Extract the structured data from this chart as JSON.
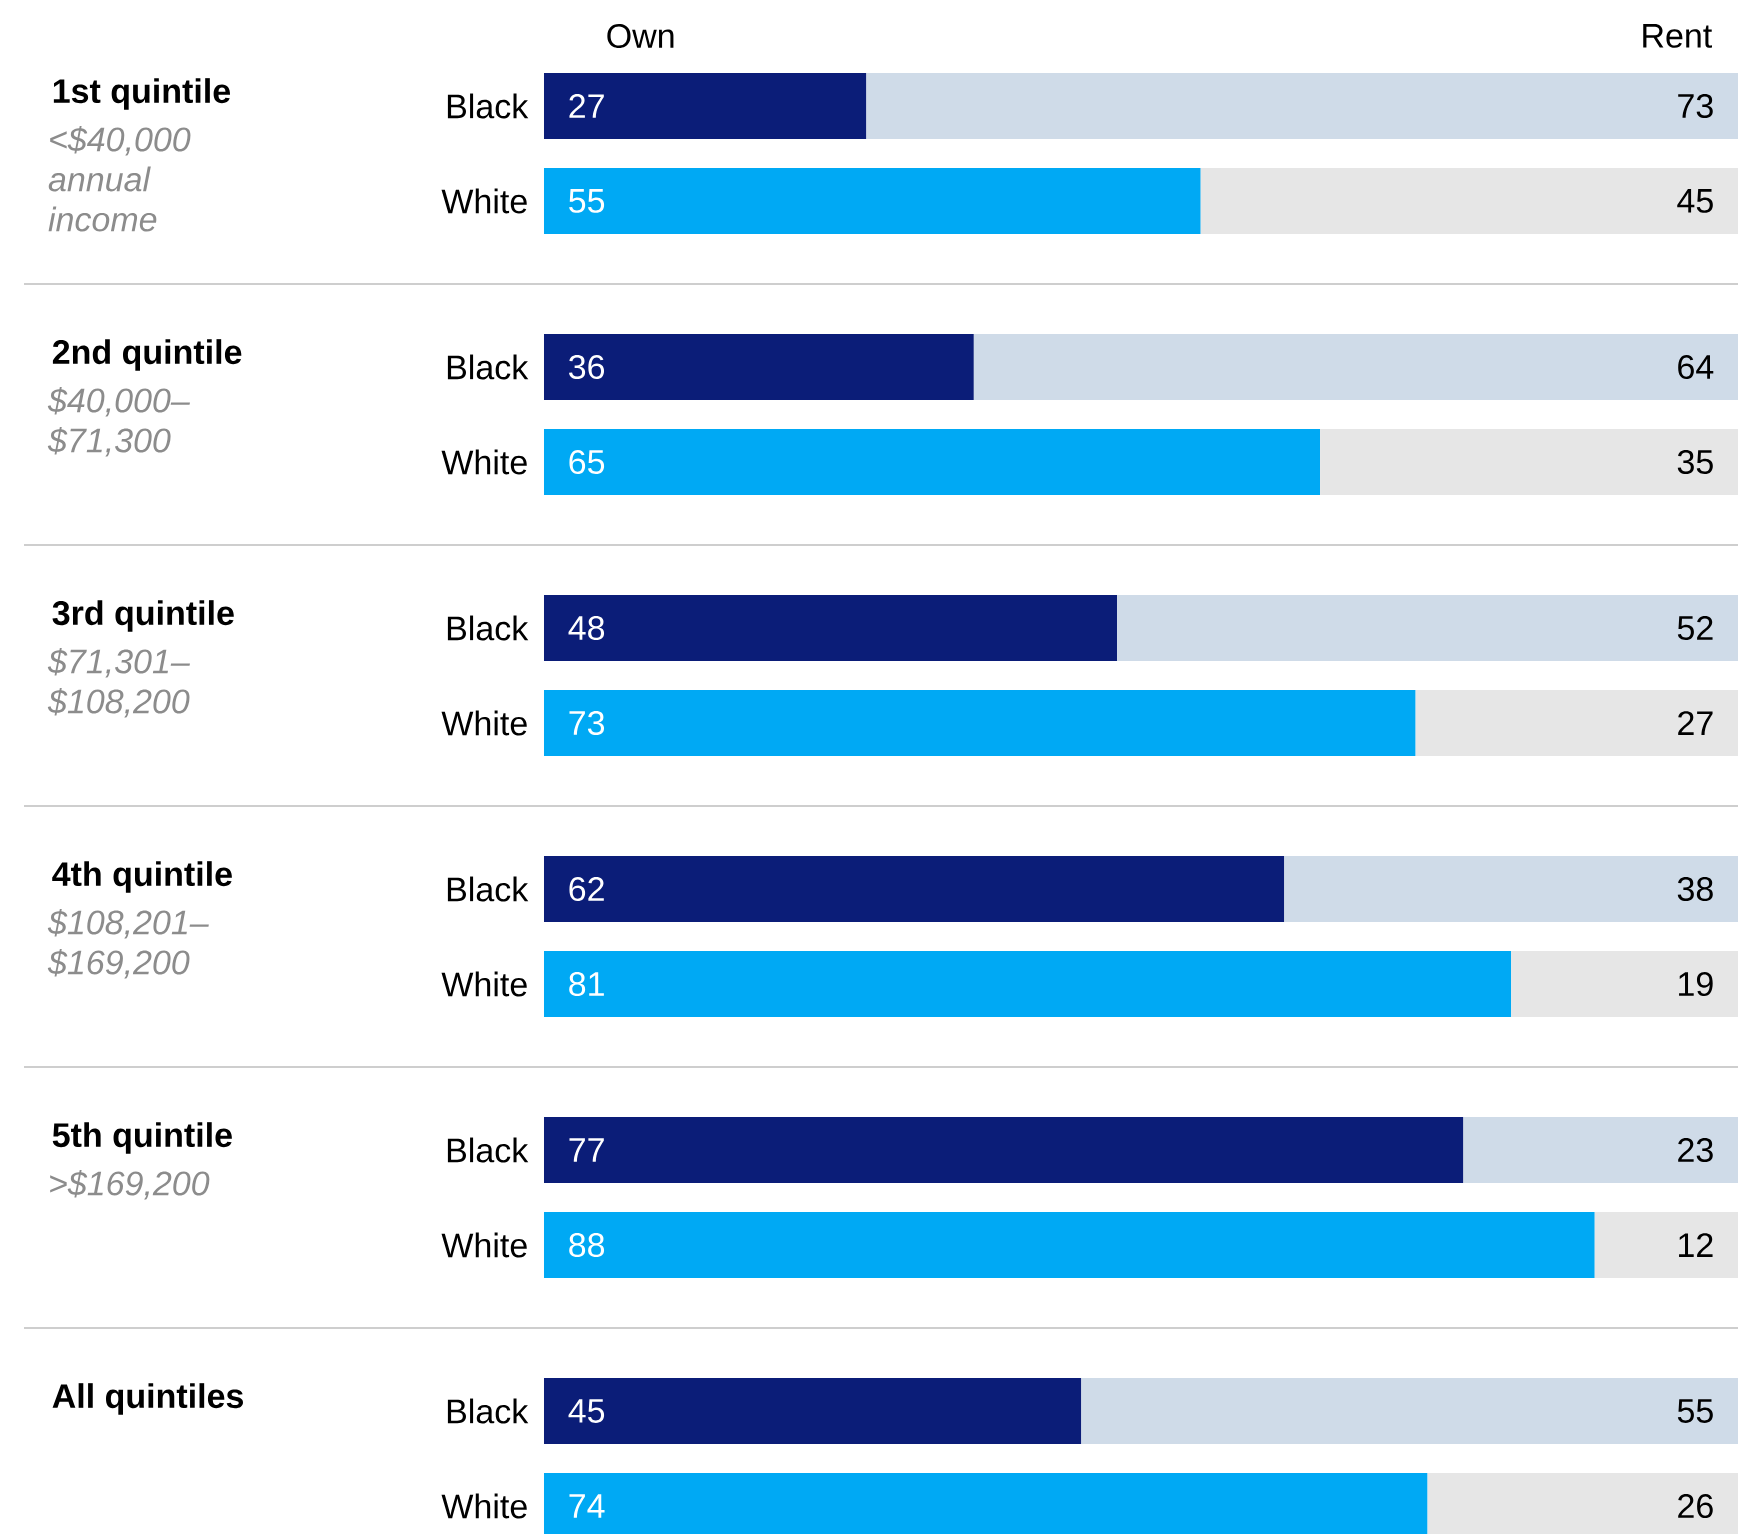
{
  "chart_data": {
    "type": "bar",
    "orientation": "horizontal",
    "stacked": true,
    "data_labels": true,
    "tick_labels": "y",
    "xlim": [
      0,
      100
    ],
    "categories": [
      "Black",
      "White",
      "Black",
      "White",
      "Black",
      "White",
      "Black",
      "White",
      "Black",
      "White",
      "Black",
      "White"
    ],
    "series": [
      {
        "name": "Own",
        "colors": [
          "#0b1d78",
          "#00a9f4",
          "#0b1d78",
          "#00a9f4",
          "#0b1d78",
          "#00a9f4",
          "#0b1d78",
          "#00a9f4",
          "#0b1d78",
          "#00a9f4",
          "#0b1d78",
          "#00a9f4"
        ],
        "values": [
          27,
          55,
          36,
          65,
          48,
          73,
          62,
          81,
          77,
          88,
          45,
          74
        ]
      },
      {
        "name": "Rent",
        "colors": [
          "#cfdbe8",
          "#e6e6e6",
          "#cfdbe8",
          "#e6e6e6",
          "#cfdbe8",
          "#e6e6e6",
          "#cfdbe8",
          "#e6e6e6",
          "#cfdbe8",
          "#e6e6e6",
          "#cfdbe8",
          "#e6e6e6"
        ],
        "values": [
          73,
          45,
          64,
          35,
          52,
          27,
          38,
          19,
          23,
          12,
          55,
          26
        ]
      }
    ],
    "annotations": [
      "1st quintile",
      "2nd quintile",
      "3rd quintile",
      "4th quintile",
      "5th quintile",
      "All quintiles",
      "<$40,000 annual income",
      "$40,000–$71,300",
      "$71,301–$108,200",
      "$108,201–$169,200",
      ">$169,200"
    ]
  }
}
